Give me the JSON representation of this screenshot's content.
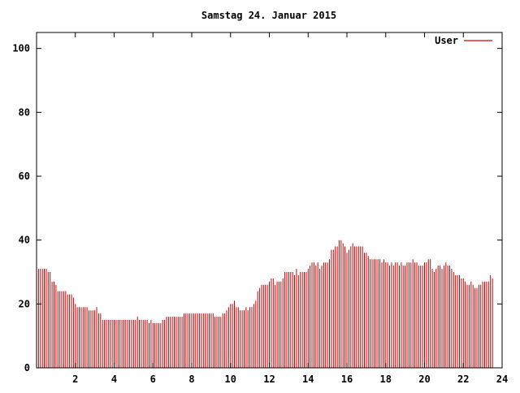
{
  "chart_data": {
    "type": "bar",
    "title": "Samstag 24. Januar 2015",
    "xlabel": "",
    "ylabel": "",
    "xlim": [
      0,
      24
    ],
    "ylim": [
      0,
      105
    ],
    "x_ticks": [
      2,
      4,
      6,
      8,
      10,
      12,
      14,
      16,
      18,
      20,
      22,
      24
    ],
    "y_ticks": [
      0,
      20,
      40,
      60,
      80,
      100
    ],
    "grid": false,
    "legend_position": "top-right",
    "series": [
      {
        "name": "User",
        "color": "#cc0000",
        "x_start": 0,
        "x_step": 0.1,
        "values": [
          32,
          31,
          31,
          31,
          31,
          31,
          30,
          30,
          27,
          27,
          26,
          24,
          24,
          24,
          24,
          24,
          23,
          23,
          23,
          22,
          20,
          19,
          19,
          19,
          19,
          19,
          19,
          18,
          18,
          18,
          18,
          19,
          17,
          17,
          15,
          15,
          15,
          15,
          15,
          15,
          15,
          15,
          15,
          15,
          15,
          15,
          15,
          15,
          15,
          15,
          15,
          15,
          16,
          15,
          15,
          15,
          15,
          15,
          14,
          15,
          14,
          14,
          14,
          14,
          14,
          15,
          15,
          16,
          16,
          16,
          16,
          16,
          16,
          16,
          16,
          16,
          17,
          17,
          17,
          17,
          17,
          17,
          17,
          17,
          17,
          17,
          17,
          17,
          17,
          17,
          17,
          17,
          16,
          16,
          16,
          16,
          17,
          17,
          18,
          19,
          20,
          20,
          21,
          19,
          19,
          18,
          18,
          18,
          19,
          18,
          19,
          19,
          20,
          21,
          24,
          25,
          26,
          26,
          26,
          26,
          27,
          28,
          28,
          26,
          27,
          27,
          27,
          28,
          30,
          30,
          30,
          30,
          30,
          29,
          31,
          29,
          30,
          30,
          30,
          30,
          31,
          32,
          33,
          33,
          32,
          33,
          31,
          32,
          33,
          33,
          33,
          34,
          37,
          37,
          38,
          38,
          40,
          40,
          39,
          38,
          36,
          37,
          38,
          39,
          38,
          38,
          38,
          38,
          38,
          36,
          36,
          35,
          34,
          34,
          34,
          34,
          34,
          34,
          33,
          34,
          33,
          33,
          32,
          33,
          32,
          33,
          33,
          32,
          33,
          32,
          32,
          33,
          33,
          33,
          34,
          33,
          33,
          32,
          32,
          32,
          33,
          33,
          34,
          34,
          31,
          30,
          31,
          32,
          32,
          31,
          32,
          33,
          32,
          32,
          31,
          30,
          29,
          29,
          29,
          28,
          28,
          27,
          26,
          26,
          27,
          26,
          25,
          25,
          26,
          26,
          27,
          27,
          27,
          27,
          29,
          28
        ]
      }
    ]
  }
}
